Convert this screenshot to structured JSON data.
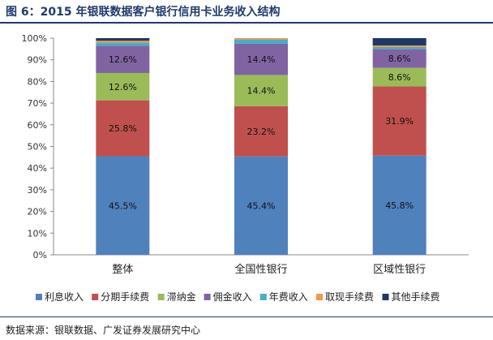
{
  "figure": {
    "title": "图 6：2015 年银联数据客户银行信用卡业务收入结构",
    "source": "数据来源：银联数据、广发证券发展研究中心"
  },
  "chart_data": {
    "type": "bar",
    "stacked": true,
    "percent": true,
    "categories": [
      "整体",
      "全国性银行",
      "区域性银行"
    ],
    "series": [
      {
        "name": "利息收入",
        "color": "#4f81bd",
        "values": [
          45.5,
          45.4,
          45.8
        ],
        "labels": [
          "45.5%",
          "45.4%",
          "45.8%"
        ]
      },
      {
        "name": "分期手续费",
        "color": "#c0504d",
        "values": [
          25.8,
          23.2,
          31.9
        ],
        "labels": [
          "25.8%",
          "23.2%",
          "31.9%"
        ]
      },
      {
        "name": "滞纳金",
        "color": "#9bbb59",
        "values": [
          12.6,
          14.4,
          8.6
        ],
        "labels": [
          "12.6%",
          "14.4%",
          "8.6%"
        ]
      },
      {
        "name": "佣金收入",
        "color": "#8064a2",
        "values": [
          12.6,
          14.4,
          8.6
        ],
        "labels": [
          "12.6%",
          "14.4%",
          "8.6%"
        ]
      },
      {
        "name": "年费收入",
        "color": "#4bacc6",
        "values": [
          1.5,
          2.0,
          1.0
        ],
        "labels": [
          "",
          "",
          ""
        ]
      },
      {
        "name": "取现手续费",
        "color": "#f79646",
        "values": [
          0.8,
          0.6,
          0.7
        ],
        "labels": [
          "",
          "",
          ""
        ]
      },
      {
        "name": "其他手续费",
        "color": "#1f3864",
        "values": [
          1.2,
          0.0,
          3.4
        ],
        "labels": [
          "",
          "",
          ""
        ]
      }
    ],
    "yticks": [
      "0%",
      "10%",
      "20%",
      "30%",
      "40%",
      "50%",
      "60%",
      "70%",
      "80%",
      "90%",
      "100%"
    ],
    "ylim": [
      0,
      100
    ],
    "grid": false,
    "legend_position": "bottom"
  }
}
